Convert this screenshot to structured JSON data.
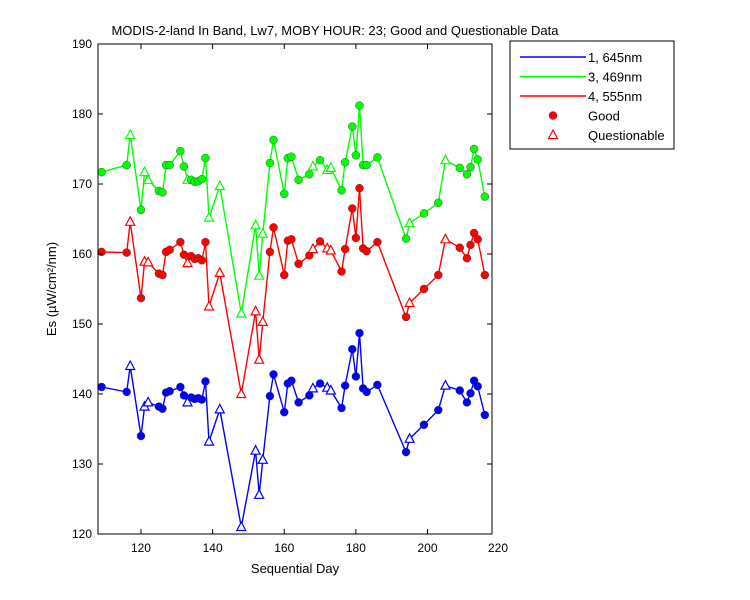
{
  "chart_data": {
    "type": "line",
    "title": "MODIS-2-land In Band,  Lw7, MOBY HOUR: 23;  Good and Questionable Data",
    "xlabel": "Sequential Day",
    "ylabel": "Es (µW/cm²/nm)",
    "xlim": [
      108,
      218
    ],
    "ylim": [
      120,
      190
    ],
    "xticks": [
      120,
      140,
      160,
      180,
      200,
      220
    ],
    "yticks": [
      120,
      130,
      140,
      150,
      160,
      170,
      180,
      190
    ],
    "grid": false,
    "legend_position": "outside-top-right",
    "x": [
      109,
      116,
      117,
      120,
      121,
      122,
      125,
      126,
      127,
      128,
      131,
      132,
      133,
      134,
      135,
      136,
      137,
      138,
      139,
      142,
      148,
      152,
      153,
      154,
      156,
      157,
      160,
      161,
      162,
      164,
      167,
      168,
      170,
      172,
      173,
      176,
      177,
      179,
      180,
      181,
      182,
      183,
      186,
      194,
      195,
      199,
      203,
      205,
      209,
      211,
      212,
      213,
      214,
      216
    ],
    "series": [
      {
        "name": "1, 645nm",
        "color": "#0000ff",
        "values": [
          141,
          140.3,
          144,
          134,
          138.2,
          138.8,
          138.2,
          137.9,
          140.2,
          140.4,
          141,
          139.8,
          138.8,
          139.5,
          139.3,
          139.4,
          139.2,
          141.8,
          133.2,
          137.8,
          121,
          131.9,
          125.6,
          130.6,
          139.7,
          142.8,
          137.4,
          141.5,
          141.9,
          138.8,
          139.8,
          140.8,
          141.5,
          140.9,
          140.5,
          138,
          141.2,
          146.4,
          142.5,
          148.7,
          140.8,
          140.3,
          141.3,
          131.7,
          133.6,
          135.6,
          137.7,
          141.2,
          140.5,
          138.8,
          140.1,
          141.9,
          141.1,
          137
        ],
        "flags": [
          "G",
          "G",
          "Q",
          "G",
          "Q",
          "Q",
          "G",
          "G",
          "G",
          "G",
          "G",
          "G",
          "Q",
          "G",
          "G",
          "G",
          "G",
          "G",
          "Q",
          "Q",
          "Q",
          "Q",
          "Q",
          "Q",
          "G",
          "G",
          "G",
          "G",
          "G",
          "G",
          "G",
          "Q",
          "G",
          "Q",
          "Q",
          "G",
          "G",
          "G",
          "G",
          "G",
          "G",
          "G",
          "G",
          "G",
          "Q",
          "G",
          "G",
          "Q",
          "G",
          "G",
          "G",
          "G",
          "G",
          "G"
        ]
      },
      {
        "name": "3, 469nm",
        "color": "#00ff00",
        "values": [
          171.7,
          172.7,
          177,
          166.3,
          171.7,
          170.6,
          169,
          168.8,
          172.7,
          172.7,
          174.7,
          172.5,
          170.6,
          170.6,
          170.3,
          170.4,
          170.7,
          173.7,
          165.2,
          169.7,
          151.5,
          164.1,
          156.9,
          162.9,
          173,
          176.3,
          168.6,
          173.7,
          173.9,
          170.6,
          171.4,
          172.5,
          173.4,
          172,
          172.3,
          169.1,
          173.1,
          178.2,
          174.1,
          181.2,
          172.7,
          172.7,
          173.8,
          162.2,
          164.4,
          165.8,
          167.3,
          173.4,
          172.3,
          171.4,
          172.4,
          175,
          173.5,
          168.2
        ],
        "flags": [
          "G",
          "G",
          "Q",
          "G",
          "Q",
          "Q",
          "G",
          "G",
          "G",
          "G",
          "G",
          "G",
          "Q",
          "G",
          "G",
          "G",
          "G",
          "G",
          "Q",
          "Q",
          "Q",
          "Q",
          "Q",
          "Q",
          "G",
          "G",
          "G",
          "G",
          "G",
          "G",
          "G",
          "Q",
          "G",
          "Q",
          "Q",
          "G",
          "G",
          "G",
          "G",
          "G",
          "G",
          "G",
          "G",
          "G",
          "Q",
          "G",
          "G",
          "Q",
          "G",
          "G",
          "G",
          "G",
          "G",
          "G"
        ]
      },
      {
        "name": "4, 555nm",
        "color": "#ff0000",
        "values": [
          160.3,
          160.2,
          164.6,
          153.7,
          158.9,
          158.8,
          157.2,
          157,
          160.3,
          160.6,
          161.7,
          159.9,
          158.7,
          159.7,
          159.3,
          159.4,
          159.1,
          161.7,
          152.5,
          157.3,
          140,
          151.8,
          144.9,
          150.3,
          160.3,
          163.8,
          157,
          161.9,
          162.1,
          158.6,
          159.8,
          160.7,
          161.8,
          160.8,
          160.5,
          157.5,
          160.7,
          166.5,
          162.3,
          169.4,
          160.8,
          160.4,
          161.7,
          151,
          153,
          155,
          157,
          162.1,
          160.9,
          159.4,
          161.3,
          163,
          162.1,
          157
        ]
      }
    ],
    "legend": [
      "1, 645nm",
      "3, 469nm",
      "4, 555nm",
      "Good",
      "Questionable"
    ]
  },
  "colors": {
    "blue": "#0000ff",
    "green": "#00ff00",
    "red": "#ff0000"
  }
}
